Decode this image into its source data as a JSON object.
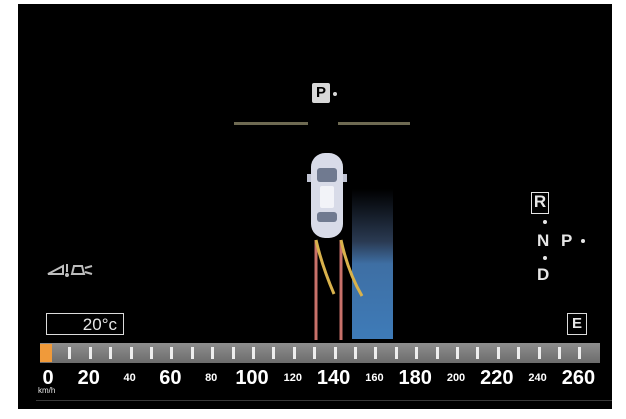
{
  "park_assist": {
    "icon_label": "P",
    "vehicle_icon": "car-top-view-icon",
    "trajectory_icon": "steering-path-icon",
    "indicator_color": "#3e7bb8"
  },
  "left_icon": "parking-assist-warning-icon",
  "gear_selector": {
    "gears": [
      "R",
      "N",
      "D"
    ],
    "park_label": "P",
    "selected": "R"
  },
  "outside_temp": "20°c",
  "eco_indicator": "E",
  "speedometer": {
    "unit": "km/h",
    "current_speed_fraction": 0.01,
    "fill_color": "#f09a3a",
    "labels_large": [
      "0",
      "20",
      "60",
      "100",
      "140",
      "180",
      "220",
      "260"
    ],
    "labels_small": [
      "40",
      "80",
      "120",
      "160",
      "200",
      "240"
    ]
  }
}
